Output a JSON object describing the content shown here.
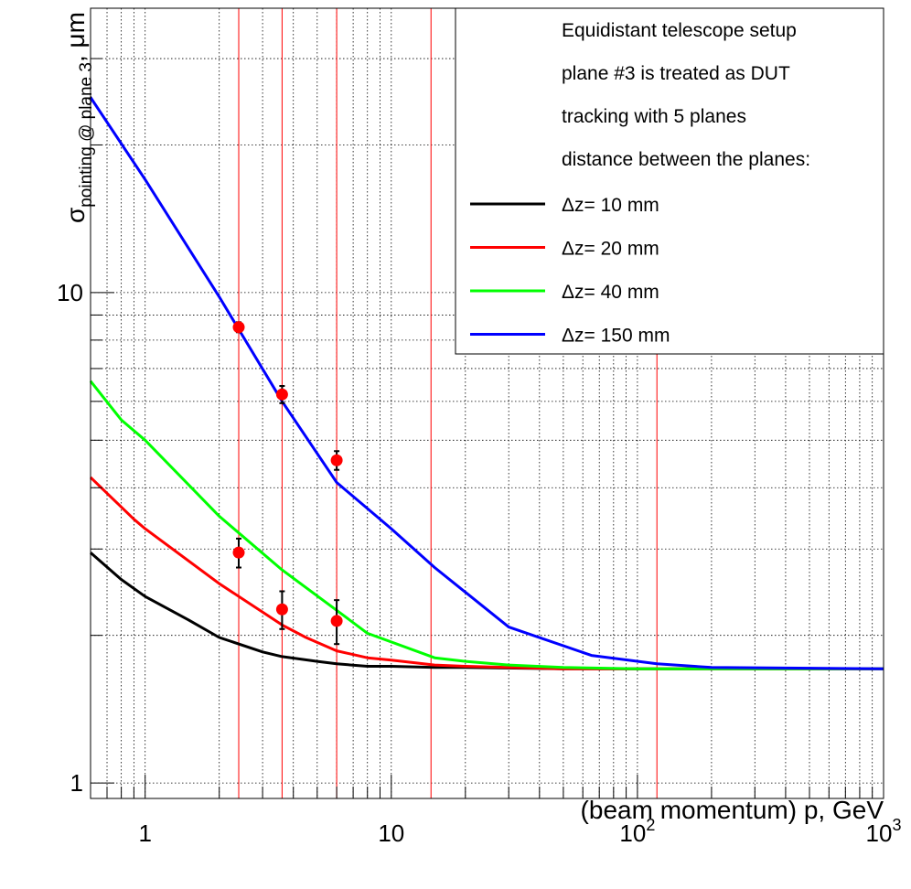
{
  "chart_data": {
    "type": "line",
    "xlabel": "(beam momentum) p, GeV",
    "ylabel": "σ",
    "ylabel_subscript": "pointing @ plane 3",
    "ylabel_unit": ", μm",
    "x_scale": "log",
    "y_scale": "log",
    "xlim": [
      0.6,
      1000
    ],
    "ylim": [
      0.93,
      38
    ],
    "grid": true,
    "x_ticks": [
      {
        "value": 1,
        "base": "1",
        "exp": ""
      },
      {
        "value": 10,
        "base": "10",
        "exp": ""
      },
      {
        "value": 100,
        "base": "10",
        "exp": "2"
      },
      {
        "value": 1000,
        "base": "10",
        "exp": "3"
      }
    ],
    "y_ticks": [
      {
        "value": 1,
        "label": "1"
      },
      {
        "value": 10,
        "label": "10"
      }
    ],
    "vertical_lines": [
      2.4,
      3.6,
      6.0,
      14.5,
      120
    ],
    "series": [
      {
        "name": "Δz=  10 mm",
        "color": "#000000",
        "x": [
          0.6,
          0.8,
          1.0,
          1.5,
          2.0,
          3.0,
          3.6,
          5.0,
          6.0,
          8.0,
          10,
          15,
          20,
          50,
          100,
          200,
          1000
        ],
        "y": [
          2.95,
          2.6,
          2.4,
          2.15,
          1.98,
          1.85,
          1.81,
          1.77,
          1.75,
          1.73,
          1.73,
          1.72,
          1.72,
          1.71,
          1.71,
          1.71,
          1.71
        ]
      },
      {
        "name": "Δz=  20 mm",
        "color": "#ff0000",
        "x": [
          0.6,
          0.9,
          1.0,
          2.0,
          3.6,
          4.5,
          6.0,
          8.0,
          10,
          15,
          20,
          30,
          50,
          100,
          1000
        ],
        "y": [
          4.2,
          3.45,
          3.3,
          2.55,
          2.1,
          1.98,
          1.86,
          1.8,
          1.78,
          1.74,
          1.73,
          1.72,
          1.71,
          1.71,
          1.71
        ]
      },
      {
        "name": "Δz=  40 mm",
        "color": "#00ff00",
        "x": [
          0.6,
          0.8,
          1.0,
          2.0,
          3.6,
          6.0,
          8.0,
          15,
          20,
          30,
          50,
          100,
          200,
          1000
        ],
        "y": [
          6.6,
          5.5,
          5.0,
          3.5,
          2.72,
          2.25,
          2.02,
          1.8,
          1.77,
          1.74,
          1.72,
          1.71,
          1.71,
          1.71
        ]
      },
      {
        "name": "Δz= 150 mm",
        "color": "#0000ff",
        "x": [
          0.6,
          1.0,
          2.0,
          3.6,
          6.0,
          10,
          15,
          30,
          65,
          120,
          200,
          1000
        ],
        "y": [
          25,
          17,
          9.8,
          6.0,
          4.1,
          3.3,
          2.75,
          2.08,
          1.82,
          1.75,
          1.72,
          1.71
        ]
      }
    ],
    "points": {
      "color": "#ff0000",
      "x": [
        2.4,
        3.6,
        6.0,
        2.4,
        3.6,
        6.0
      ],
      "y": [
        8.5,
        6.2,
        4.55,
        2.95,
        2.26,
        2.14
      ],
      "err": [
        0.2,
        0.25,
        0.2,
        0.2,
        0.2,
        0.22
      ]
    },
    "legend": {
      "placement": "top-right",
      "text_lines": [
        "Equidistant telescope setup",
        "plane #3 is treated as DUT",
        "tracking with 5 planes",
        "distance between the planes:"
      ]
    }
  }
}
